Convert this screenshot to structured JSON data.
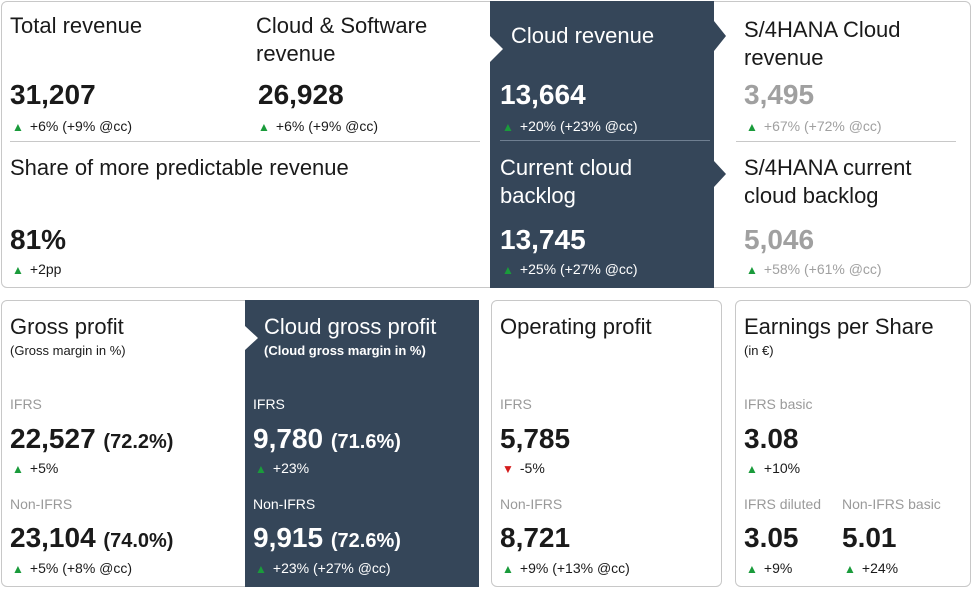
{
  "top": {
    "total_revenue": {
      "label": "Total revenue",
      "value": "31,207",
      "change": "+6% (+9% @cc)"
    },
    "cloud_software": {
      "label_line1": "Cloud & Software",
      "label_line2": "revenue",
      "value": "26,928",
      "change": "+6% (+9% @cc)"
    },
    "cloud_revenue": {
      "label": "Cloud revenue",
      "value": "13,664",
      "change": "+20% (+23% @cc)"
    },
    "s4_cloud_revenue": {
      "label_line1": "S/4HANA Cloud",
      "label_line2": "revenue",
      "value": "3,495",
      "change": "+67% (+72% @cc)"
    },
    "predictable": {
      "label": "Share of more predictable revenue",
      "value": "81%",
      "change": "+2pp"
    },
    "current_cloud_backlog": {
      "label_line1": "Current cloud",
      "label_line2": "backlog",
      "value": "13,745",
      "change": "+25% (+27% @cc)"
    },
    "s4_backlog": {
      "label_line1": "S/4HANA current",
      "label_line2": "cloud backlog",
      "value": "5,046",
      "change": "+58% (+61% @cc)"
    }
  },
  "gross_profit": {
    "label": "Gross profit",
    "sublabel": "(Gross margin in %)",
    "ifrs_label": "IFRS",
    "ifrs_value": "22,527",
    "ifrs_pct": "(72.2%)",
    "ifrs_change": "+5%",
    "nonifrs_label": "Non-IFRS",
    "nonifrs_value": "23,104",
    "nonifrs_pct": "(74.0%)",
    "nonifrs_change": "+5% (+8% @cc)"
  },
  "cloud_gross_profit": {
    "label": "Cloud gross profit",
    "sublabel": "(Cloud gross margin in %)",
    "ifrs_label": "IFRS",
    "ifrs_value": "9,780",
    "ifrs_pct": "(71.6%)",
    "ifrs_change": "+23%",
    "nonifrs_label": "Non-IFRS",
    "nonifrs_value": "9,915",
    "nonifrs_pct": "(72.6%)",
    "nonifrs_change": "+23% (+27% @cc)"
  },
  "operating_profit": {
    "label": "Operating profit",
    "ifrs_label": "IFRS",
    "ifrs_value": "5,785",
    "ifrs_change": "-5%",
    "nonifrs_label": "Non-IFRS",
    "nonifrs_value": "8,721",
    "nonifrs_change": "+9% (+13% @cc)"
  },
  "eps": {
    "label": "Earnings per Share",
    "sublabel": "(in €)",
    "basic_label": "IFRS basic",
    "basic_value": "3.08",
    "basic_change": "+10%",
    "diluted_label": "IFRS diluted",
    "diluted_value": "3.05",
    "diluted_change": "+9%",
    "nonifrs_label": "Non-IFRS basic",
    "nonifrs_value": "5.01",
    "nonifrs_change": "+24%"
  },
  "colors": {
    "dark_panel": "#354659",
    "up": "#1a9b3b",
    "down": "#d41c1c",
    "muted": "#a0a0a0"
  },
  "icons": {
    "up": "triangle-up-icon",
    "down": "triangle-down-icon"
  }
}
